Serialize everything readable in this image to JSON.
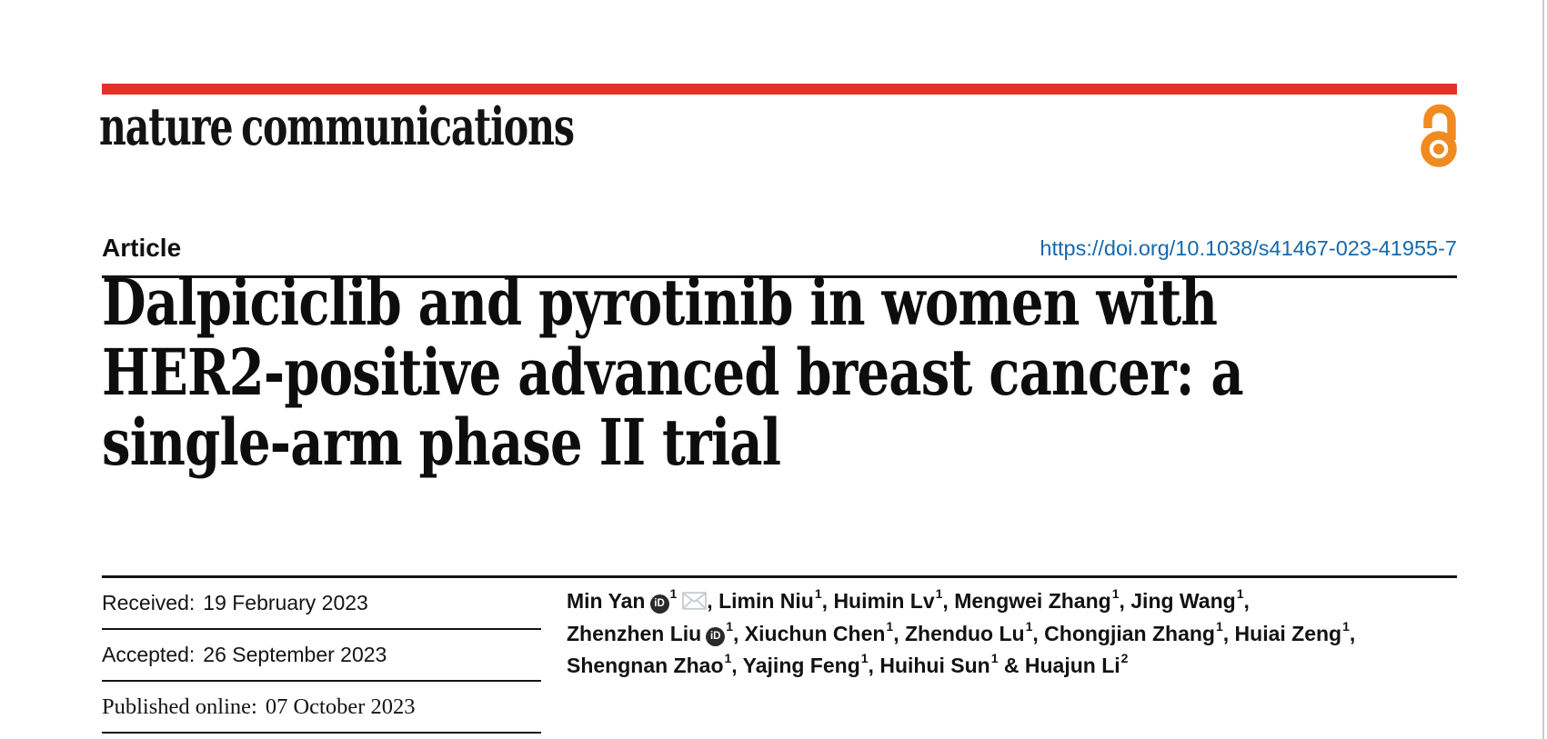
{
  "colors": {
    "brand_red": "#e33127",
    "doi_blue": "#1569ad",
    "open_access_orange": "#f08b1f",
    "orcid_black": "#2b2a29",
    "envelope_gray": "#c6cbcf"
  },
  "header": {
    "journal_name": "nature communications"
  },
  "article_bar": {
    "type_label": "Article",
    "doi": "https://doi.org/10.1038/s41467-023-41955-7"
  },
  "title": {
    "lines": [
      "Dalpiciclib and pyrotinib in women with",
      "HER2-positive advanced breast cancer: a",
      "single-arm phase II trial"
    ]
  },
  "dates": {
    "rows": [
      {
        "label": "Received:",
        "value": "19 February 2023",
        "font": "sans"
      },
      {
        "label": "Accepted:",
        "value": "26 September 2023",
        "font": "sans"
      },
      {
        "label": "Published online:",
        "value": "07 October 2023",
        "font": "serif"
      }
    ]
  },
  "authors": {
    "orcid_icon_text": "iD",
    "lines": [
      {
        "trailing": ",",
        "items": [
          {
            "sep": "",
            "name": "Min Yan",
            "sup": "1",
            "orcid": true,
            "email": true
          },
          {
            "sep": ", ",
            "name": "Limin Niu",
            "sup": "1"
          },
          {
            "sep": ", ",
            "name": "Huimin Lv",
            "sup": "1"
          },
          {
            "sep": ", ",
            "name": "Mengwei Zhang",
            "sup": "1"
          },
          {
            "sep": ", ",
            "name": "Jing Wang",
            "sup": "1"
          }
        ]
      },
      {
        "trailing": ",",
        "items": [
          {
            "sep": "",
            "name": "Zhenzhen Liu",
            "sup": "1",
            "orcid": true
          },
          {
            "sep": ", ",
            "name": "Xiuchun Chen",
            "sup": "1"
          },
          {
            "sep": ", ",
            "name": "Zhenduo Lu",
            "sup": "1"
          },
          {
            "sep": ", ",
            "name": "Chongjian Zhang",
            "sup": "1"
          },
          {
            "sep": ", ",
            "name": "Huiai Zeng",
            "sup": "1"
          }
        ]
      },
      {
        "trailing": "",
        "items": [
          {
            "sep": "",
            "name": "Shengnan Zhao",
            "sup": "1"
          },
          {
            "sep": ", ",
            "name": "Yajing Feng",
            "sup": "1"
          },
          {
            "sep": ", ",
            "name": "Huihui Sun",
            "sup": "1"
          },
          {
            "sep": " & ",
            "name": "Huajun Li",
            "sup": "2"
          }
        ]
      }
    ]
  }
}
